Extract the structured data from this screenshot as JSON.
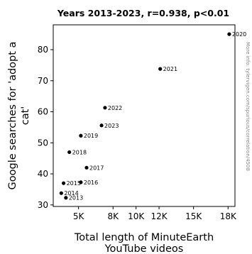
{
  "chart_data": {
    "type": "scatter",
    "title": "Years 2013-2023, r=0.938, p<0.01",
    "xlabel": [
      "Total length of MinuteEarth",
      "YouTube videos"
    ],
    "ylabel": [
      "Google searches for 'adopt a",
      "cat'"
    ],
    "watermark": "More info: tylervigen.com/spurious/correlation/4508",
    "xlim": [
      2800,
      18600
    ],
    "ylim": [
      29.5,
      88
    ],
    "x_ticks": [
      {
        "value": 5000,
        "label": "5K"
      },
      {
        "value": 8000,
        "label": "8K"
      },
      {
        "value": 10000,
        "label": "10K"
      },
      {
        "value": 12000,
        "label": "12K"
      },
      {
        "value": 15000,
        "label": "15K"
      },
      {
        "value": 18000,
        "label": "18K"
      }
    ],
    "y_ticks": [
      {
        "value": 30,
        "label": "30"
      },
      {
        "value": 40,
        "label": "40"
      },
      {
        "value": 50,
        "label": "50"
      },
      {
        "value": 60,
        "label": "60"
      },
      {
        "value": 70,
        "label": "70"
      },
      {
        "value": 80,
        "label": "80"
      }
    ],
    "grid": false,
    "point_color": "#000000",
    "points": [
      {
        "label": "2013",
        "x": 3900,
        "y": 32.3
      },
      {
        "label": "2014",
        "x": 3500,
        "y": 33.8
      },
      {
        "label": "2015",
        "x": 3700,
        "y": 37.0
      },
      {
        "label": "2016",
        "x": 5200,
        "y": 37.3
      },
      {
        "label": "2017",
        "x": 5700,
        "y": 42.0
      },
      {
        "label": "2018",
        "x": 4200,
        "y": 47.0
      },
      {
        "label": "2019",
        "x": 5200,
        "y": 52.3
      },
      {
        "label": "2020",
        "x": 18100,
        "y": 85.0
      },
      {
        "label": "2021",
        "x": 12100,
        "y": 73.8
      },
      {
        "label": "2022",
        "x": 7300,
        "y": 61.3
      },
      {
        "label": "2023",
        "x": 7000,
        "y": 55.6
      }
    ]
  }
}
